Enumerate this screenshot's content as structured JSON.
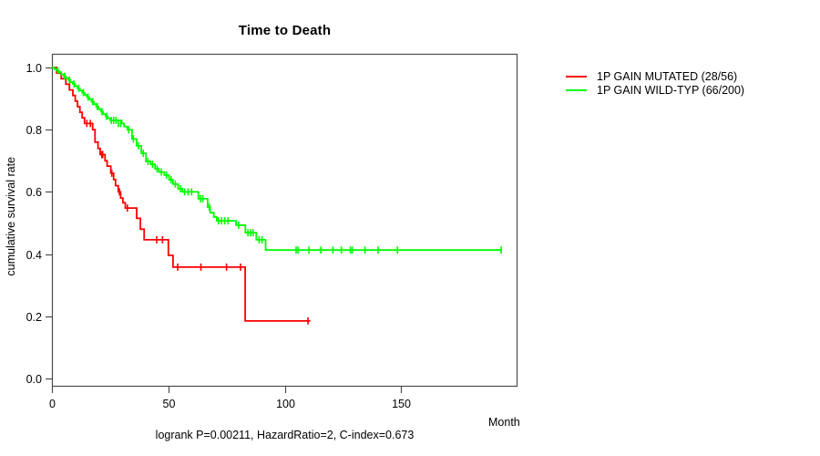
{
  "title": "Time to Death",
  "footer_text": "logrank P=0.00211, HazardRatio=2, C-index=0.673",
  "x_axis": {
    "label": "Month",
    "ticks": [
      "0",
      "50",
      "100",
      "150"
    ]
  },
  "y_axis": {
    "label": "cumulative survival rate",
    "ticks": [
      "0.0",
      "0.2",
      "0.4",
      "0.6",
      "0.8",
      "1.0"
    ]
  },
  "legend": [
    {
      "label": "1P GAIN MUTATED (28/56)",
      "color": "#ff0000"
    },
    {
      "label": "1P GAIN WILD-TYP (66/200)",
      "color": "#00ff00"
    }
  ],
  "colors": {
    "axis": "#4d4d4d",
    "text": "#000000",
    "background": "#ffffff"
  },
  "chart_data": {
    "type": "line",
    "subtype": "kaplan-meier-step",
    "title": "Time to Death",
    "xlabel": "Month",
    "ylabel": "cumulative survival rate",
    "xlim": [
      0,
      200
    ],
    "ylim": [
      0,
      1
    ],
    "x_ticks": [
      0,
      50,
      100,
      150
    ],
    "y_ticks": [
      0,
      0.2,
      0.4,
      0.6,
      0.8,
      1.0
    ],
    "grid": false,
    "legend_position": "right-outside",
    "series": [
      {
        "name": "1P GAIN MUTATED (28/56)",
        "color": "#ff0000",
        "end_month": 111,
        "steps": [
          [
            0,
            1.0
          ],
          [
            2,
            0.982
          ],
          [
            4,
            0.964
          ],
          [
            6,
            0.946
          ],
          [
            7.5,
            0.928
          ],
          [
            9,
            0.91
          ],
          [
            10,
            0.892
          ],
          [
            11,
            0.874
          ],
          [
            12,
            0.856
          ],
          [
            13,
            0.838
          ],
          [
            14,
            0.82
          ],
          [
            17.5,
            0.8
          ],
          [
            18.5,
            0.76
          ],
          [
            19.8,
            0.74
          ],
          [
            20.7,
            0.72
          ],
          [
            22.8,
            0.7
          ],
          [
            23.7,
            0.683
          ],
          [
            25.3,
            0.66
          ],
          [
            26.5,
            0.64
          ],
          [
            27.3,
            0.62
          ],
          [
            28.5,
            0.6
          ],
          [
            29.5,
            0.58
          ],
          [
            30.5,
            0.565
          ],
          [
            31.5,
            0.548
          ],
          [
            36.4,
            0.515
          ],
          [
            38,
            0.48
          ],
          [
            39.6,
            0.446
          ],
          [
            50,
            0.396
          ],
          [
            52,
            0.358
          ],
          [
            83,
            0.185
          ]
        ],
        "censors": [
          [
            15,
            0.82
          ],
          [
            16.5,
            0.82
          ],
          [
            21.4,
            0.72
          ],
          [
            21.8,
            0.72
          ],
          [
            25.7,
            0.66
          ],
          [
            29,
            0.6
          ],
          [
            32.4,
            0.548
          ],
          [
            45,
            0.446
          ],
          [
            47.5,
            0.446
          ],
          [
            54,
            0.358
          ],
          [
            64,
            0.358
          ],
          [
            75,
            0.358
          ],
          [
            81,
            0.358
          ],
          [
            110,
            0.185
          ]
        ]
      },
      {
        "name": "1P GAIN WILD-TYP (66/200)",
        "color": "#00ff00",
        "end_month": 193,
        "steps": [
          [
            0,
            1.0
          ],
          [
            1,
            0.995
          ],
          [
            2,
            0.99
          ],
          [
            3,
            0.985
          ],
          [
            4,
            0.978
          ],
          [
            5,
            0.972
          ],
          [
            6,
            0.966
          ],
          [
            7,
            0.96
          ],
          [
            8,
            0.953
          ],
          [
            9,
            0.947
          ],
          [
            10,
            0.94
          ],
          [
            11,
            0.933
          ],
          [
            12,
            0.926
          ],
          [
            13,
            0.919
          ],
          [
            14,
            0.912
          ],
          [
            15,
            0.905
          ],
          [
            16,
            0.898
          ],
          [
            17,
            0.89
          ],
          [
            18,
            0.882
          ],
          [
            19,
            0.874
          ],
          [
            20,
            0.866
          ],
          [
            21,
            0.858
          ],
          [
            22,
            0.85
          ],
          [
            23,
            0.843
          ],
          [
            24,
            0.836
          ],
          [
            25,
            0.83
          ],
          [
            30,
            0.82
          ],
          [
            31,
            0.81
          ],
          [
            32.5,
            0.8
          ],
          [
            34.4,
            0.77
          ],
          [
            36.4,
            0.748
          ],
          [
            38.4,
            0.724
          ],
          [
            40.4,
            0.698
          ],
          [
            42.3,
            0.689
          ],
          [
            44.3,
            0.674
          ],
          [
            46,
            0.664
          ],
          [
            48.3,
            0.654
          ],
          [
            50.3,
            0.639
          ],
          [
            52,
            0.625
          ],
          [
            54.2,
            0.61
          ],
          [
            56,
            0.6
          ],
          [
            62.9,
            0.578
          ],
          [
            66.9,
            0.551
          ],
          [
            68,
            0.533
          ],
          [
            69.5,
            0.519
          ],
          [
            70.8,
            0.507
          ],
          [
            79.1,
            0.493
          ],
          [
            83.1,
            0.469
          ],
          [
            87.8,
            0.446
          ],
          [
            91.8,
            0.413
          ]
        ],
        "censors": [
          [
            2.5,
            0.99
          ],
          [
            5.5,
            0.972
          ],
          [
            7.5,
            0.96
          ],
          [
            9.5,
            0.947
          ],
          [
            11.5,
            0.933
          ],
          [
            13.5,
            0.919
          ],
          [
            15.5,
            0.905
          ],
          [
            17.5,
            0.89
          ],
          [
            19.5,
            0.874
          ],
          [
            21.5,
            0.858
          ],
          [
            23.5,
            0.843
          ],
          [
            25.5,
            0.83
          ],
          [
            26.5,
            0.83
          ],
          [
            27.5,
            0.83
          ],
          [
            28.5,
            0.82
          ],
          [
            29.5,
            0.82
          ],
          [
            33,
            0.8
          ],
          [
            35,
            0.77
          ],
          [
            37.2,
            0.748
          ],
          [
            39.2,
            0.724
          ],
          [
            41.2,
            0.698
          ],
          [
            43.2,
            0.689
          ],
          [
            45.2,
            0.674
          ],
          [
            47,
            0.664
          ],
          [
            49.2,
            0.654
          ],
          [
            51.2,
            0.639
          ],
          [
            53,
            0.625
          ],
          [
            55.2,
            0.61
          ],
          [
            57,
            0.6
          ],
          [
            58.5,
            0.6
          ],
          [
            60,
            0.6
          ],
          [
            63.8,
            0.578
          ],
          [
            64.8,
            0.578
          ],
          [
            67.6,
            0.551
          ],
          [
            71.5,
            0.507
          ],
          [
            72.8,
            0.507
          ],
          [
            74.2,
            0.507
          ],
          [
            75.6,
            0.507
          ],
          [
            80.2,
            0.493
          ],
          [
            84.2,
            0.469
          ],
          [
            85.4,
            0.469
          ],
          [
            86.4,
            0.469
          ],
          [
            89,
            0.446
          ],
          [
            90.2,
            0.446
          ],
          [
            104.9,
            0.413
          ],
          [
            105.7,
            0.413
          ],
          [
            110.4,
            0.413
          ],
          [
            115.5,
            0.413
          ],
          [
            120.7,
            0.413
          ],
          [
            124.3,
            0.413
          ],
          [
            128.2,
            0.413
          ],
          [
            129,
            0.413
          ],
          [
            134.5,
            0.413
          ],
          [
            140.1,
            0.413
          ],
          [
            148.4,
            0.413
          ],
          [
            193,
            0.413
          ]
        ]
      }
    ]
  }
}
